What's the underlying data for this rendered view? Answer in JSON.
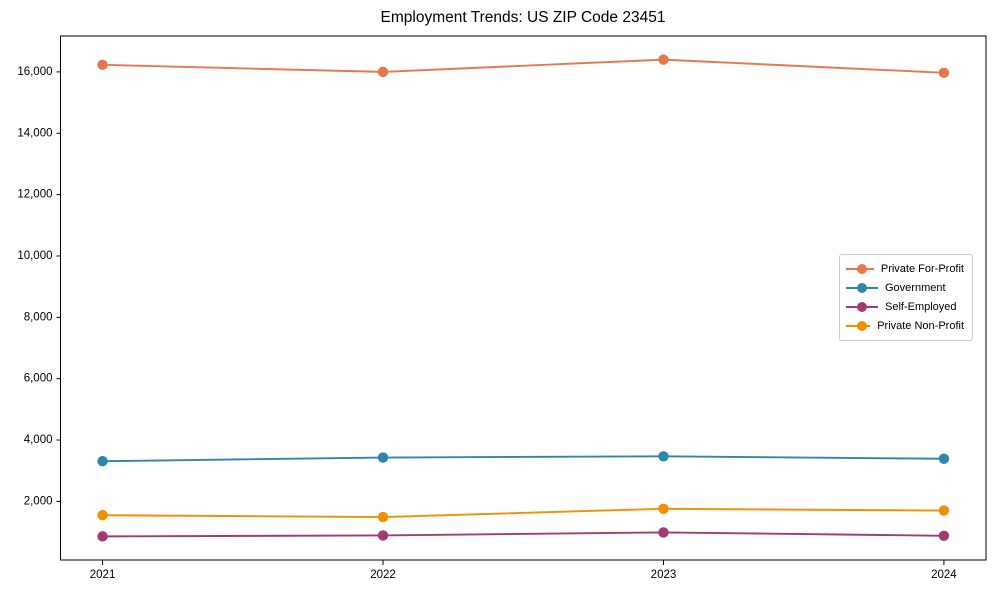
{
  "figure": {
    "background": "#ffffff"
  },
  "chart_data": {
    "type": "line",
    "title": "Employment Trends: US ZIP Code 23451",
    "xlabel": "",
    "ylabel": "",
    "x": [
      2021,
      2022,
      2023,
      2024
    ],
    "x_tick_labels": [
      "2021",
      "2022",
      "2023",
      "2024"
    ],
    "yticks": [
      2000,
      4000,
      6000,
      8000,
      10000,
      12000,
      14000,
      16000
    ],
    "ytick_labels": [
      "2,000",
      "4,000",
      "6,000",
      "8,000",
      "10,000",
      "12,000",
      "14,000",
      "16,000"
    ],
    "xlim": [
      2020.85,
      2024.15
    ],
    "ylim": [
      90,
      17170
    ],
    "grid": false,
    "marker": "circle",
    "legend_position": "center right",
    "series": [
      {
        "name": "Private For-Profit",
        "color": "#E8764C",
        "values": [
          16230,
          16000,
          16400,
          15970
        ]
      },
      {
        "name": "Government",
        "color": "#2E86AB",
        "values": [
          3310,
          3430,
          3470,
          3390
        ]
      },
      {
        "name": "Self-Employed",
        "color": "#A23B72",
        "values": [
          860,
          890,
          990,
          880
        ]
      },
      {
        "name": "Private Non-Profit",
        "color": "#F18F01",
        "values": [
          1550,
          1490,
          1760,
          1700
        ]
      }
    ]
  }
}
